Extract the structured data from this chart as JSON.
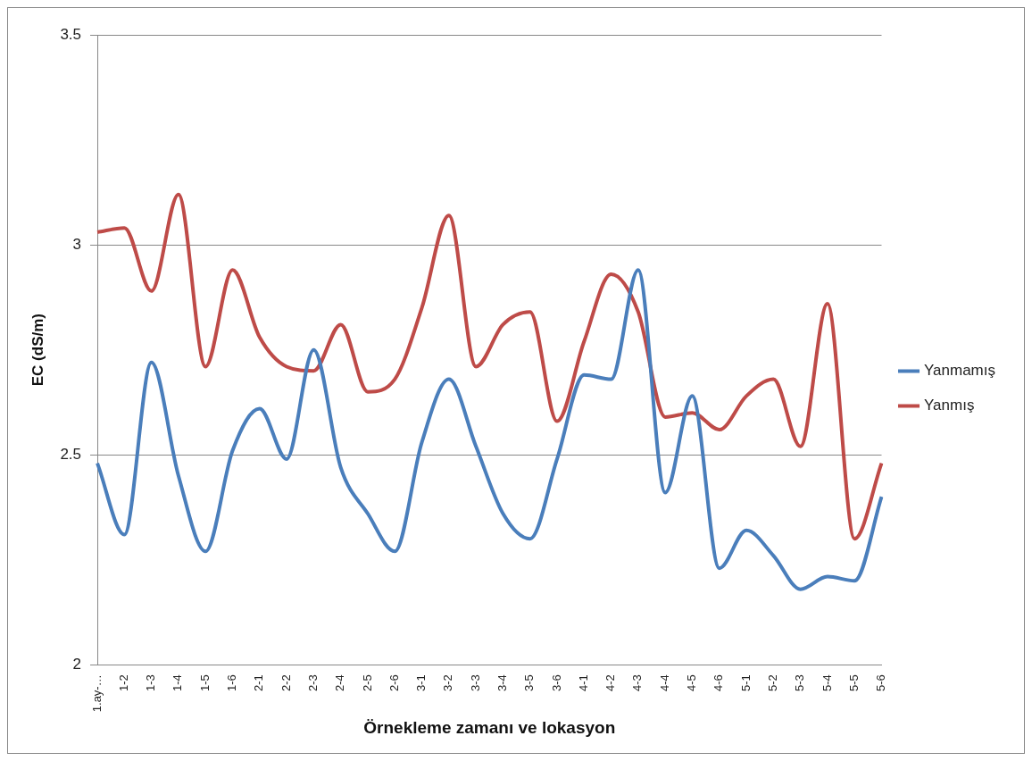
{
  "chart_data": {
    "type": "line",
    "xlabel": "Örnekleme zamanı ve lokasyon",
    "ylabel": "EC (dS/m)",
    "categories": [
      "1.ay-…",
      "1-2",
      "1-3",
      "1-4",
      "1-5",
      "1-6",
      "2-1",
      "2-2",
      "2-3",
      "2-4",
      "2-5",
      "2-6",
      "3-1",
      "3-2",
      "3-3",
      "3-4",
      "3-5",
      "3-6",
      "4-1",
      "4-2",
      "4-3",
      "4-4",
      "4-5",
      "4-6",
      "5-1",
      "5-2",
      "5-3",
      "5-4",
      "5-5",
      "5-6"
    ],
    "series": [
      {
        "name": "Yanmamış",
        "color": "#4a7ebb",
        "values": [
          2.48,
          2.31,
          2.72,
          2.45,
          2.27,
          2.51,
          2.61,
          2.49,
          2.75,
          2.47,
          2.36,
          2.27,
          2.53,
          2.68,
          2.52,
          2.36,
          2.3,
          2.49,
          2.69,
          2.68,
          2.94,
          2.41,
          2.64,
          2.23,
          2.32,
          2.26,
          2.18,
          2.21,
          2.2,
          2.4
        ]
      },
      {
        "name": "Yanmış",
        "color": "#be4b48",
        "values": [
          3.03,
          3.04,
          2.89,
          3.12,
          2.71,
          2.94,
          2.78,
          2.71,
          2.7,
          2.81,
          2.65,
          2.68,
          2.85,
          3.07,
          2.71,
          2.81,
          2.84,
          2.58,
          2.77,
          2.93,
          2.84,
          2.59,
          2.6,
          2.56,
          2.64,
          2.68,
          2.52,
          2.86,
          2.3,
          2.48
        ]
      }
    ],
    "ylim": [
      2,
      3.5
    ],
    "yticks": [
      2,
      2.5,
      3,
      3.5
    ],
    "grid": "y",
    "legend": "right",
    "marker": "none",
    "line_style": "solid"
  }
}
